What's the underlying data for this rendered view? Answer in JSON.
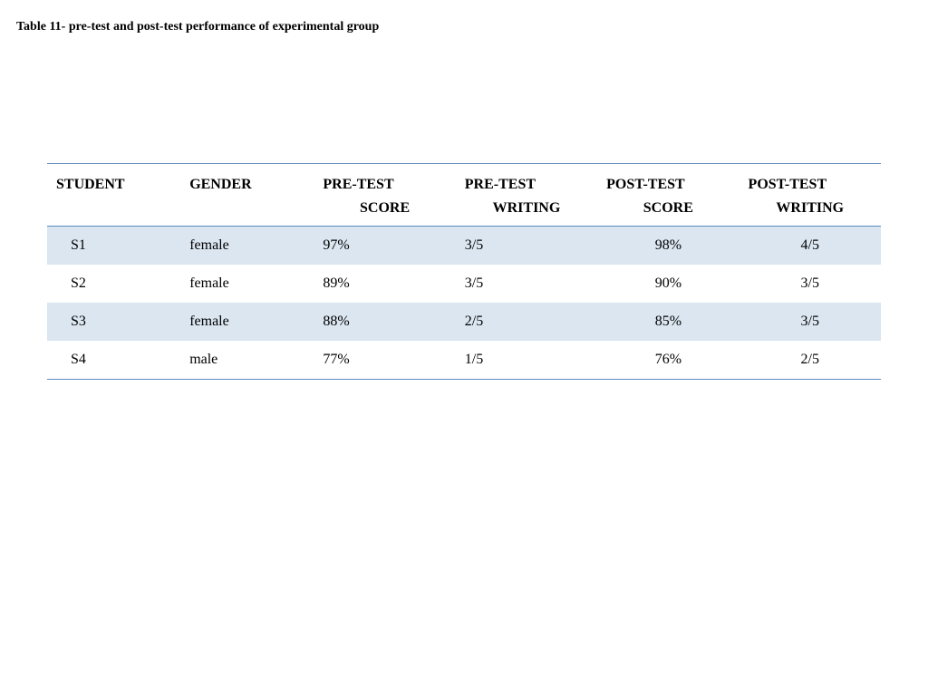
{
  "caption": "Table 11- pre-test and post-test performance of experimental group",
  "table": {
    "type": "table",
    "border_color": "#5b8bbf",
    "stripe_color": "#dbe6f1",
    "background_color": "#ffffff",
    "text_color": "#000000",
    "font_family": "Times New Roman",
    "header_fontsize": 16,
    "body_fontsize": 16,
    "columns": [
      {
        "line1": "STUDENT",
        "line2": "",
        "align": "left"
      },
      {
        "line1": "GENDER",
        "line2": "",
        "align": "left"
      },
      {
        "line1": "PRE-TEST",
        "line2": "SCORE",
        "align": "left"
      },
      {
        "line1": "PRE-TEST",
        "line2": "WRITING",
        "align": "left"
      },
      {
        "line1": "POST-TEST",
        "line2": "SCORE",
        "align": "center"
      },
      {
        "line1": "POST-TEST",
        "line2": "WRITING",
        "align": "center"
      }
    ],
    "rows": [
      [
        "S1",
        "female",
        "97%",
        "3/5",
        "98%",
        "4/5"
      ],
      [
        "S2",
        "female",
        "89%",
        "3/5",
        "90%",
        "3/5"
      ],
      [
        "S3",
        "female",
        "88%",
        "2/5",
        "85%",
        "3/5"
      ],
      [
        "S4",
        "male",
        "77%",
        "1/5",
        "76%",
        "2/5"
      ]
    ],
    "stripe_rows": [
      0,
      2
    ]
  }
}
